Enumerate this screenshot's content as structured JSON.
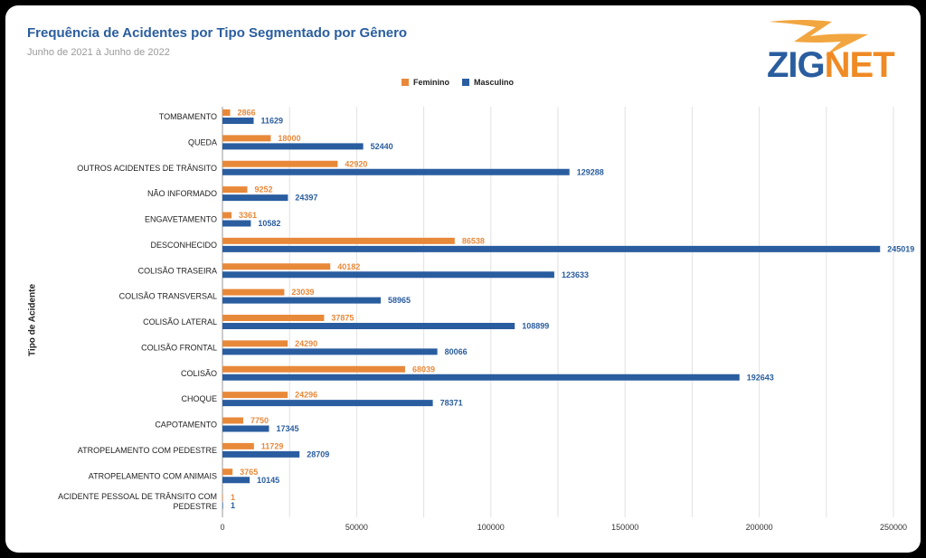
{
  "chart_data": {
    "type": "bar",
    "orientation": "horizontal",
    "title": "Frequência de Acidentes por Tipo Segmentado por Gênero",
    "subtitle": "Junho de 2021 à Junho de 2022",
    "ylabel": "Tipo de Acidente",
    "xlim": [
      0,
      250000
    ],
    "xticks": [
      "0",
      "50000",
      "100000",
      "150000",
      "200000",
      "250000"
    ],
    "grid": true,
    "legend_placement": "top-center",
    "categories": [
      "TOMBAMENTO",
      "QUEDA",
      "OUTROS ACIDENTES DE TRÂNSITO",
      "NÃO INFORMADO",
      "ENGAVETAMENTO",
      "DESCONHECIDO",
      "COLISÃO TRASEIRA",
      "COLISÃO TRANSVERSAL",
      "COLISÃO LATERAL",
      "COLISÃO FRONTAL",
      "COLISÃO",
      "CHOQUE",
      "CAPOTAMENTO",
      "ATROPELAMENTO COM PEDESTRE",
      "ATROPELAMENTO COM ANIMAIS",
      "ACIDENTE PESSOAL DE TRÂNSITO COM PEDESTRE"
    ],
    "series": [
      {
        "name": "Feminino",
        "color": "#e8893a",
        "values": [
          2866,
          18000,
          42920,
          9252,
          3361,
          86538,
          40182,
          23039,
          37875,
          24290,
          68039,
          24296,
          7750,
          11729,
          3765,
          1
        ]
      },
      {
        "name": "Masculino",
        "color": "#2a5d9f",
        "values": [
          11629,
          52440,
          129288,
          24397,
          10582,
          245019,
          123633,
          58965,
          108899,
          80066,
          192643,
          78371,
          17345,
          28709,
          10145,
          1
        ]
      }
    ]
  },
  "logo": {
    "part1": "ZIG",
    "part2": "NET"
  }
}
